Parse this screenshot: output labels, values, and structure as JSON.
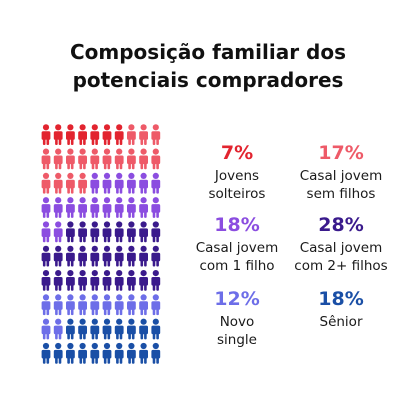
{
  "title": {
    "line1": "Composição familiar dos",
    "line2": "potenciais compradores"
  },
  "chart_data": {
    "type": "pictogram",
    "total_icons": 100,
    "columns": 10,
    "categories": [
      {
        "value": 7,
        "value_label": "7%",
        "label_lines": [
          "Jovens",
          "solteiros"
        ],
        "color": "#e2242f"
      },
      {
        "value": 17,
        "value_label": "17%",
        "label_lines": [
          "Casal jovem",
          "sem filhos"
        ],
        "color": "#ee5a68"
      },
      {
        "value": 18,
        "value_label": "18%",
        "label_lines": [
          "Casal jovem",
          "com 1 filho"
        ],
        "color": "#8b4de0"
      },
      {
        "value": 28,
        "value_label": "28%",
        "label_lines": [
          "Casal jovem",
          "com 2+ filhos"
        ],
        "color": "#3a1a8c"
      },
      {
        "value": 12,
        "value_label": "12%",
        "label_lines": [
          "Novo",
          "single"
        ],
        "color": "#6d6ee8"
      },
      {
        "value": 18,
        "value_label": "18%",
        "label_lines": [
          "Sênior"
        ],
        "color": "#1a4fa6"
      }
    ]
  }
}
